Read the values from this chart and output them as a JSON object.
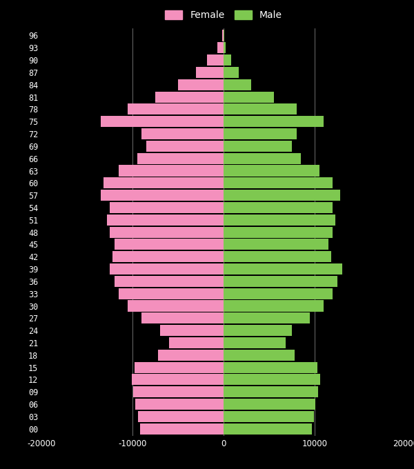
{
  "ages": [
    0,
    3,
    6,
    9,
    12,
    15,
    18,
    21,
    24,
    27,
    30,
    33,
    36,
    39,
    42,
    45,
    48,
    51,
    54,
    57,
    60,
    63,
    66,
    69,
    72,
    75,
    78,
    81,
    84,
    87,
    90,
    93,
    96
  ],
  "female": [
    9200,
    9400,
    9700,
    9900,
    10100,
    9800,
    7200,
    6000,
    7000,
    9000,
    10500,
    11500,
    12000,
    12500,
    12200,
    12000,
    12500,
    12800,
    12500,
    13500,
    13200,
    11500,
    9500,
    8500,
    9000,
    13500,
    10500,
    7500,
    5000,
    3000,
    1800,
    700,
    150
  ],
  "male": [
    9700,
    9900,
    10100,
    10400,
    10600,
    10300,
    7800,
    6800,
    7500,
    9500,
    11000,
    12000,
    12500,
    13000,
    11800,
    11500,
    12000,
    12300,
    12000,
    12800,
    12000,
    10500,
    8500,
    7500,
    8000,
    11000,
    8000,
    5500,
    3000,
    1700,
    800,
    250,
    50
  ],
  "female_color": "#f490bd",
  "male_color": "#7ec850",
  "background_color": "#000000",
  "text_color": "#ffffff",
  "grid_color": "#ffffff",
  "xlim": [
    -20000,
    20000
  ],
  "xticks": [
    -20000,
    -10000,
    0,
    10000,
    20000
  ],
  "xtick_labels": [
    "-20000",
    "-10000",
    "0",
    "10000",
    "20000"
  ],
  "bar_height": 0.9,
  "legend_female": "Female",
  "legend_male": "Male",
  "figwidth": 6.0,
  "figheight": 6.8,
  "dpi": 100
}
